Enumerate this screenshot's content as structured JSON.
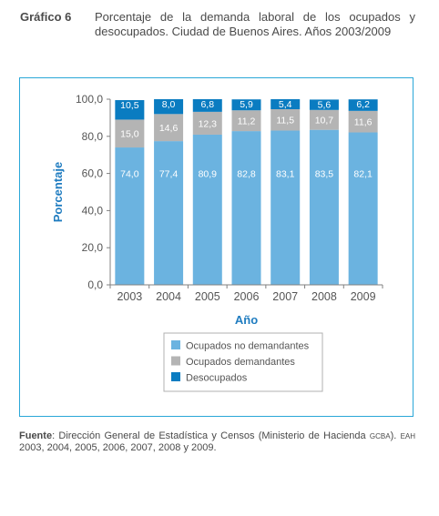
{
  "figure": {
    "label": "Gráfico 6",
    "title": "Porcentaje de la demanda laboral de los ocupados y desocupados. Ciudad de Buenos Aires. Años 2003/2009"
  },
  "source": {
    "label": "Fuente",
    "text_a": ": Dirección General de Estadística y Censos (Ministerio de Hacienda ",
    "sc_a": "GCBA",
    "text_b": "). ",
    "sc_b": "EAH",
    "text_c": " 2003, 2004, 2005, 2006, 2007, 2008 y 2009."
  },
  "colors": {
    "ocupados_no_demandantes": "#6bb3e0",
    "ocupados_demandantes": "#b4b4b4",
    "desocupados": "#0a7cc1",
    "axis_title": "#1f7cc0",
    "frame": "#2aa7d8"
  },
  "chart_data": {
    "type": "bar",
    "stacked": true,
    "categories": [
      "2003",
      "2004",
      "2005",
      "2006",
      "2007",
      "2008",
      "2009"
    ],
    "series": [
      {
        "name": "Ocupados no demandantes",
        "values": [
          74.0,
          77.4,
          80.9,
          82.8,
          83.1,
          83.5,
          82.1
        ],
        "labels": [
          "74,0",
          "77,4",
          "80,9",
          "82,8",
          "83,1",
          "83,5",
          "82,1"
        ]
      },
      {
        "name": "Ocupados demandantes",
        "values": [
          15.0,
          14.6,
          12.3,
          11.2,
          11.5,
          10.7,
          11.6
        ],
        "labels": [
          "15,0",
          "14,6",
          "12,3",
          "11,2",
          "11,5",
          "10,7",
          "11,6"
        ]
      },
      {
        "name": "Desocupados",
        "values": [
          10.5,
          8.0,
          6.8,
          5.9,
          5.4,
          5.6,
          6.2
        ],
        "labels": [
          "10,5",
          "8,0",
          "6,8",
          "5,9",
          "5,4",
          "5,6",
          "6,2"
        ]
      }
    ],
    "xlabel": "Año",
    "ylabel": "Porcentaje",
    "ylim": [
      0,
      100
    ],
    "yticks": [
      0,
      20,
      40,
      60,
      80,
      100
    ],
    "ytick_labels": [
      "0,0",
      "20,0",
      "40,0",
      "60,0",
      "80,0",
      "100,0"
    ],
    "grid": false,
    "legend_position": "bottom-center"
  }
}
